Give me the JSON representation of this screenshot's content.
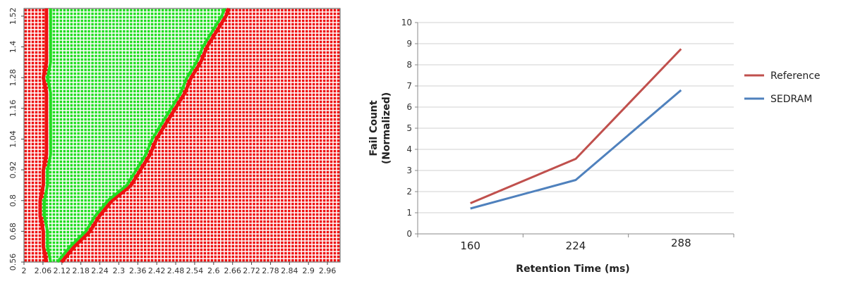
{
  "chart_data": [
    {
      "type": "heatmap",
      "title": "",
      "xlabel": "",
      "ylabel": "",
      "x_ticks": [
        "2",
        "2.06",
        "2.12",
        "2.18",
        "2.24",
        "2.3",
        "2.36",
        "2.42",
        "2.48",
        "2.54",
        "2.6",
        "2.66",
        "2.72",
        "2.78",
        "2.84",
        "2.9",
        "2.96"
      ],
      "y_ticks": [
        "0.56",
        "0.68",
        "0.8",
        "0.92",
        "1.04",
        "1.16",
        "1.28",
        "1.4",
        "1.52"
      ],
      "xlim": [
        2.0,
        3.0
      ],
      "ylim": [
        0.56,
        1.55
      ],
      "pass_region_description_rows": "For each y, pass (green) region spans x from left_boundary to right_boundary; outside is fail (red).",
      "pass_boundary": {
        "y": [
          0.56,
          0.62,
          0.68,
          0.74,
          0.8,
          0.86,
          0.92,
          0.98,
          1.04,
          1.1,
          1.16,
          1.22,
          1.28,
          1.34,
          1.4,
          1.46,
          1.52,
          1.55
        ],
        "left_x": [
          2.08,
          2.07,
          2.07,
          2.06,
          2.06,
          2.07,
          2.07,
          2.08,
          2.08,
          2.08,
          2.08,
          2.08,
          2.07,
          2.08,
          2.08,
          2.08,
          2.08,
          2.08
        ],
        "right_x": [
          2.11,
          2.15,
          2.2,
          2.23,
          2.27,
          2.33,
          2.36,
          2.39,
          2.41,
          2.44,
          2.47,
          2.5,
          2.52,
          2.55,
          2.57,
          2.6,
          2.63,
          2.64
        ]
      },
      "colors": {
        "pass": "#22dd22",
        "fail": "#ee1111",
        "background": "#ffffff"
      }
    },
    {
      "type": "line",
      "title": "",
      "xlabel": "Retention Time (ms)",
      "ylabel": "Fail Count (Normalized)",
      "ylabel_lines": [
        "Fail Count",
        "(Normalized)"
      ],
      "categories": [
        "160",
        "224",
        "288"
      ],
      "ylim": [
        0,
        10
      ],
      "y_ticks": [
        "0",
        "1",
        "2",
        "3",
        "4",
        "5",
        "6",
        "7",
        "8",
        "9",
        "10"
      ],
      "grid": true,
      "legend_position": "right",
      "series": [
        {
          "name": "Reference",
          "values": [
            1.45,
            3.55,
            8.75
          ],
          "color": "#c0504d"
        },
        {
          "name": "SEDRAM",
          "values": [
            1.2,
            2.55,
            6.8
          ],
          "color": "#4f81bd"
        }
      ]
    }
  ]
}
